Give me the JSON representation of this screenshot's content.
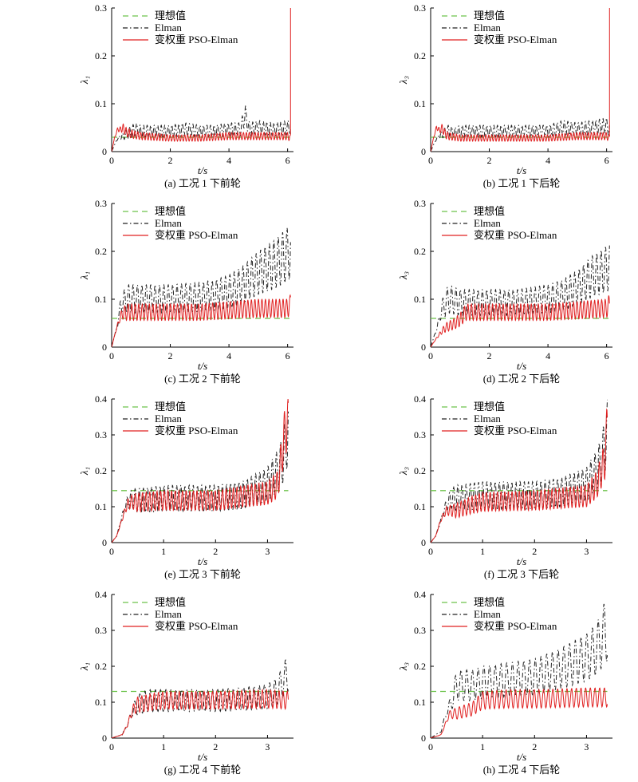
{
  "legend": {
    "ideal": "理想值",
    "elman": "Elman",
    "pso": "变权重 PSO-Elman"
  },
  "xlabel": "t/s",
  "colors": {
    "ideal": "#6cc24a",
    "elman": "#222222",
    "pso": "#e02020",
    "axis": "#000000"
  },
  "chart_data": [
    {
      "type": "line",
      "caption": "(a) 工况 1 下前轮",
      "ylabel": "λ₁",
      "xlim": [
        0,
        6.2
      ],
      "ylim": [
        0,
        0.3
      ],
      "xticks": [
        0,
        2,
        4,
        6
      ],
      "yticks": [
        0,
        0.1,
        0.2,
        0.3
      ],
      "xtick_labels": [
        "0",
        "2",
        "4",
        "6"
      ],
      "ytick_labels": [
        "0",
        "0.1",
        "0.2",
        "0.3"
      ],
      "legend_position": "top-left",
      "grid": false,
      "series": [
        {
          "name": "理想值",
          "style": "dashed",
          "color": "#6cc24a",
          "x": [
            0,
            6.1
          ],
          "y": [
            0.03,
            0.03
          ]
        },
        {
          "name": "Elman",
          "style": "dashdot",
          "color": "#222222",
          "x": [
            0,
            0.2,
            0.4,
            0.6,
            0.8,
            1,
            1.5,
            2,
            2.5,
            3,
            3.5,
            4,
            4.4,
            4.55,
            4.7,
            5,
            5.5,
            6,
            6.1
          ],
          "y": [
            0,
            0.03,
            0.04,
            0.05,
            0.06,
            0.055,
            0.055,
            0.055,
            0.06,
            0.055,
            0.055,
            0.06,
            0.06,
            0.1,
            0.06,
            0.065,
            0.06,
            0.065,
            0.065
          ],
          "osc_period": 0.12
        },
        {
          "name": "变权重 PSO-Elman",
          "style": "solid",
          "color": "#e02020",
          "x": [
            0,
            0.1,
            0.2,
            0.3,
            0.4,
            0.5,
            0.7,
            1,
            2,
            3,
            4,
            5,
            6,
            6.08,
            6.1,
            6.1
          ],
          "y": [
            0,
            0.03,
            0.05,
            0.052,
            0.058,
            0.05,
            0.045,
            0.04,
            0.035,
            0.035,
            0.04,
            0.04,
            0.04,
            0.035,
            0.035,
            0.3
          ],
          "osc_period": 0.1
        }
      ]
    },
    {
      "type": "line",
      "caption": "(b) 工况 1 下后轮",
      "ylabel": "λ₃",
      "xlim": [
        0,
        6.2
      ],
      "ylim": [
        0,
        0.3
      ],
      "xticks": [
        0,
        2,
        4,
        6
      ],
      "yticks": [
        0,
        0.1,
        0.2,
        0.3
      ],
      "xtick_labels": [
        "0",
        "2",
        "4",
        "6"
      ],
      "ytick_labels": [
        "0",
        "0.1",
        "0.2",
        "0.3"
      ],
      "legend_position": "top-left",
      "grid": false,
      "series": [
        {
          "name": "理想值",
          "style": "dashed",
          "color": "#6cc24a",
          "x": [
            0,
            6.1
          ],
          "y": [
            0.03,
            0.03
          ]
        },
        {
          "name": "Elman",
          "style": "dashdot",
          "color": "#222222",
          "x": [
            0,
            0.2,
            0.4,
            0.6,
            0.8,
            1,
            2,
            3,
            4,
            4.5,
            5,
            5.5,
            6,
            6.1
          ],
          "y": [
            0,
            0.03,
            0.045,
            0.055,
            0.05,
            0.055,
            0.055,
            0.055,
            0.055,
            0.065,
            0.06,
            0.065,
            0.07,
            0.06
          ],
          "osc_period": 0.12
        },
        {
          "name": "变权重 PSO-Elman",
          "style": "solid",
          "color": "#e02020",
          "x": [
            0,
            0.1,
            0.2,
            0.3,
            0.4,
            0.5,
            0.6,
            1,
            2,
            3,
            4,
            5,
            6,
            6.08,
            6.1,
            6.1
          ],
          "y": [
            0,
            0.03,
            0.055,
            0.05,
            0.058,
            0.045,
            0.04,
            0.035,
            0.035,
            0.035,
            0.035,
            0.04,
            0.04,
            0.035,
            0.035,
            0.3
          ],
          "osc_period": 0.1
        }
      ]
    },
    {
      "type": "line",
      "caption": "(c) 工况 2 下前轮",
      "ylabel": "λ₁",
      "xlim": [
        0,
        6.2
      ],
      "ylim": [
        0,
        0.3
      ],
      "xticks": [
        0,
        2,
        4,
        6
      ],
      "yticks": [
        0,
        0.1,
        0.2,
        0.3
      ],
      "xtick_labels": [
        "0",
        "2",
        "4",
        "6"
      ],
      "ytick_labels": [
        "0",
        "0.1",
        "0.2",
        "0.3"
      ],
      "legend_position": "top-left",
      "grid": false,
      "series": [
        {
          "name": "理想值",
          "style": "dashed",
          "color": "#6cc24a",
          "x": [
            0,
            6.1
          ],
          "y": [
            0.06,
            0.06
          ]
        },
        {
          "name": "Elman",
          "style": "dashdot",
          "color": "#222222",
          "x": [
            0,
            0.2,
            0.3,
            0.5,
            1,
            2,
            3,
            3.5,
            4,
            4.5,
            5,
            5.5,
            6,
            6.1
          ],
          "y": [
            0,
            0.05,
            0.1,
            0.13,
            0.13,
            0.13,
            0.135,
            0.14,
            0.15,
            0.17,
            0.2,
            0.22,
            0.25,
            0.26
          ],
          "osc_period": 0.15
        },
        {
          "name": "变权重 PSO-Elman",
          "style": "solid",
          "color": "#e02020",
          "x": [
            0,
            0.2,
            0.35,
            0.5,
            1,
            2,
            3,
            4,
            5,
            6,
            6.1
          ],
          "y": [
            0,
            0.05,
            0.08,
            0.09,
            0.09,
            0.09,
            0.09,
            0.095,
            0.1,
            0.1,
            0.11
          ],
          "osc_period": 0.12
        }
      ]
    },
    {
      "type": "line",
      "caption": "(d) 工况 2 下后轮",
      "ylabel": "λ₃",
      "xlim": [
        0,
        6.2
      ],
      "ylim": [
        0,
        0.3
      ],
      "xticks": [
        0,
        2,
        4,
        6
      ],
      "yticks": [
        0,
        0.1,
        0.2,
        0.3
      ],
      "xtick_labels": [
        "0",
        "2",
        "4",
        "6"
      ],
      "ytick_labels": [
        "0",
        "0.1",
        "0.2",
        "0.3"
      ],
      "legend_position": "top-left",
      "grid": false,
      "series": [
        {
          "name": "理想值",
          "style": "dashed",
          "color": "#6cc24a",
          "x": [
            0,
            6.1
          ],
          "y": [
            0.06,
            0.06
          ]
        },
        {
          "name": "Elman",
          "style": "dashdot",
          "color": "#222222",
          "x": [
            0,
            0.2,
            0.4,
            0.6,
            1,
            2,
            3,
            4,
            4.5,
            5,
            5.5,
            6,
            6.1
          ],
          "y": [
            0,
            0.04,
            0.1,
            0.13,
            0.12,
            0.12,
            0.12,
            0.13,
            0.14,
            0.16,
            0.19,
            0.21,
            0.22
          ],
          "osc_period": 0.15
        },
        {
          "name": "变权重 PSO-Elman",
          "style": "solid",
          "color": "#e02020",
          "x": [
            0,
            0.2,
            0.5,
            0.8,
            1,
            1.2,
            2,
            3,
            4,
            5,
            6,
            6.1
          ],
          "y": [
            0,
            0.02,
            0.05,
            0.06,
            0.07,
            0.09,
            0.09,
            0.09,
            0.09,
            0.095,
            0.1,
            0.11
          ],
          "osc_period": 0.12
        }
      ]
    },
    {
      "type": "line",
      "caption": "(e) 工况 3 下前轮",
      "ylabel": "λ₁",
      "xlim": [
        0,
        3.5
      ],
      "ylim": [
        0,
        0.4
      ],
      "xticks": [
        0,
        1,
        2,
        3
      ],
      "yticks": [
        0,
        0.1,
        0.2,
        0.3,
        0.4
      ],
      "xtick_labels": [
        "0",
        "1",
        "2",
        "3"
      ],
      "ytick_labels": [
        "0",
        "0.1",
        "0.2",
        "0.3",
        "0.4"
      ],
      "legend_position": "top-left",
      "grid": false,
      "series": [
        {
          "name": "理想值",
          "style": "dashed",
          "color": "#6cc24a",
          "x": [
            0,
            3.4
          ],
          "y": [
            0.145,
            0.145
          ]
        },
        {
          "name": "Elman",
          "style": "dashdot",
          "color": "#222222",
          "x": [
            0,
            0.1,
            0.2,
            0.3,
            0.4,
            0.5,
            1,
            2,
            2.5,
            3,
            3.2,
            3.3,
            3.4
          ],
          "y": [
            0,
            0.02,
            0.08,
            0.13,
            0.15,
            0.15,
            0.16,
            0.16,
            0.17,
            0.21,
            0.26,
            0.3,
            0.4
          ],
          "osc_period": 0.08
        },
        {
          "name": "变权重 PSO-Elman",
          "style": "solid",
          "color": "#e02020",
          "x": [
            0,
            0.1,
            0.2,
            0.3,
            0.4,
            0.6,
            1,
            2,
            3,
            3.2,
            3.35,
            3.4
          ],
          "y": [
            0,
            0.02,
            0.07,
            0.12,
            0.135,
            0.14,
            0.145,
            0.145,
            0.17,
            0.2,
            0.4,
            0.4
          ],
          "osc_period": 0.07
        }
      ]
    },
    {
      "type": "line",
      "caption": "(f) 工况 3 下后轮",
      "ylabel": "λ₃",
      "xlim": [
        0,
        3.5
      ],
      "ylim": [
        0,
        0.4
      ],
      "xticks": [
        0,
        1,
        2,
        3
      ],
      "yticks": [
        0,
        0.1,
        0.2,
        0.3,
        0.4
      ],
      "xtick_labels": [
        "0",
        "1",
        "2",
        "3"
      ],
      "ytick_labels": [
        "0",
        "0.1",
        "0.2",
        "0.3",
        "0.4"
      ],
      "legend_position": "top-left",
      "grid": false,
      "series": [
        {
          "name": "理想值",
          "style": "dashed",
          "color": "#6cc24a",
          "x": [
            0,
            3.4
          ],
          "y": [
            0.145,
            0.145
          ]
        },
        {
          "name": "Elman",
          "style": "dashdot",
          "color": "#222222",
          "x": [
            0,
            0.1,
            0.2,
            0.3,
            0.4,
            0.5,
            1,
            2,
            2.5,
            3,
            3.2,
            3.3,
            3.4
          ],
          "y": [
            0,
            0.02,
            0.07,
            0.12,
            0.15,
            0.16,
            0.17,
            0.17,
            0.18,
            0.21,
            0.26,
            0.3,
            0.4
          ],
          "osc_period": 0.08
        },
        {
          "name": "变权重 PSO-Elman",
          "style": "solid",
          "color": "#e02020",
          "x": [
            0,
            0.1,
            0.2,
            0.3,
            0.5,
            0.8,
            1,
            2,
            3,
            3.2,
            3.35,
            3.4
          ],
          "y": [
            0,
            0.02,
            0.07,
            0.1,
            0.11,
            0.13,
            0.14,
            0.145,
            0.16,
            0.2,
            0.28,
            0.4
          ],
          "osc_period": 0.07
        }
      ]
    },
    {
      "type": "line",
      "caption": "(g) 工况 4 下前轮",
      "ylabel": "λ₁",
      "xlim": [
        0,
        3.5
      ],
      "ylim": [
        0,
        0.4
      ],
      "xticks": [
        0,
        1,
        2,
        3
      ],
      "yticks": [
        0,
        0.1,
        0.2,
        0.3,
        0.4
      ],
      "xtick_labels": [
        "0",
        "1",
        "2",
        "3"
      ],
      "ytick_labels": [
        "0",
        "0.1",
        "0.2",
        "0.3",
        "0.4"
      ],
      "legend_position": "top-left",
      "grid": false,
      "series": [
        {
          "name": "理想值",
          "style": "dashed",
          "color": "#6cc24a",
          "x": [
            0,
            3.4
          ],
          "y": [
            0.13,
            0.13
          ]
        },
        {
          "name": "Elman",
          "style": "dashdot",
          "color": "#222222",
          "x": [
            0,
            0.2,
            0.3,
            0.4,
            0.5,
            0.7,
            1,
            2,
            2.5,
            3,
            3.2,
            3.35,
            3.4
          ],
          "y": [
            0,
            0.01,
            0.04,
            0.09,
            0.12,
            0.135,
            0.135,
            0.135,
            0.14,
            0.15,
            0.17,
            0.22,
            0.24
          ],
          "osc_period": 0.1
        },
        {
          "name": "变权重 PSO-Elman",
          "style": "solid",
          "color": "#e02020",
          "x": [
            0,
            0.2,
            0.3,
            0.4,
            0.5,
            0.8,
            1,
            2,
            3,
            3.4
          ],
          "y": [
            0,
            0.01,
            0.04,
            0.09,
            0.115,
            0.125,
            0.13,
            0.13,
            0.135,
            0.13
          ],
          "osc_period": 0.08
        }
      ]
    },
    {
      "type": "line",
      "caption": "(h) 工况 4 下后轮",
      "ylabel": "λ₃",
      "xlim": [
        0,
        3.5
      ],
      "ylim": [
        0,
        0.4
      ],
      "xticks": [
        0,
        1,
        2,
        3
      ],
      "yticks": [
        0,
        0.1,
        0.2,
        0.3,
        0.4
      ],
      "xtick_labels": [
        "0",
        "1",
        "2",
        "3"
      ],
      "ytick_labels": [
        "0",
        "0.1",
        "0.2",
        "0.3",
        "0.4"
      ],
      "legend_position": "top-left",
      "grid": false,
      "series": [
        {
          "name": "理想值",
          "style": "dashed",
          "color": "#6cc24a",
          "x": [
            0,
            3.4
          ],
          "y": [
            0.13,
            0.13
          ]
        },
        {
          "name": "Elman",
          "style": "dashdot",
          "color": "#222222",
          "x": [
            0,
            0.2,
            0.3,
            0.4,
            0.5,
            0.8,
            1,
            1.5,
            2,
            2.5,
            3,
            3.2,
            3.35,
            3.4
          ],
          "y": [
            0,
            0.02,
            0.08,
            0.12,
            0.19,
            0.19,
            0.2,
            0.21,
            0.22,
            0.25,
            0.29,
            0.32,
            0.38,
            0.39
          ],
          "osc_period": 0.11
        },
        {
          "name": "变权重 PSO-Elman",
          "style": "solid",
          "color": "#e02020",
          "x": [
            0,
            0.2,
            0.3,
            0.35,
            0.5,
            0.8,
            1,
            1.5,
            2,
            3,
            3.4
          ],
          "y": [
            0,
            0.01,
            0.05,
            0.075,
            0.085,
            0.1,
            0.13,
            0.135,
            0.135,
            0.14,
            0.14
          ],
          "osc_period": 0.09
        }
      ]
    }
  ]
}
